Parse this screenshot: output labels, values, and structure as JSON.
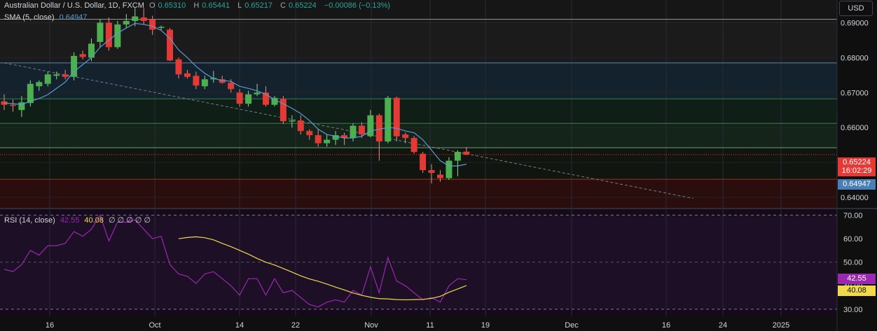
{
  "header": {
    "symbol": "Australian Dollar / U.S. Dollar, 1D, FXCM",
    "o_label": "O",
    "o": "0.65310",
    "h_label": "H",
    "h": "0.65441",
    "l_label": "L",
    "l": "0.65217",
    "c_label": "C",
    "c": "0.65224",
    "change": "−0.00086 (−0.13%)",
    "sma_label": "SMA (5, close)",
    "sma_value": "0.64947"
  },
  "currency_button": "USD",
  "price_tags": {
    "last": "0.65224",
    "countdown": "16:02:29",
    "sma": "0.64947"
  },
  "rsi_header": {
    "label": "RSI (14, close)",
    "rsi": "42.55",
    "ma": "40.08",
    "rest": "∅ ∅ ∅ ∅ ∅"
  },
  "rsi_tags": {
    "rsi": "42.55",
    "ma": "40.08"
  },
  "colors": {
    "up": "#4caf50",
    "down": "#e53935",
    "sma": "#5b9bd5",
    "rsi": "#9c27b0",
    "rsi_ma": "#f0d94a",
    "trend": "#787b86"
  },
  "chart_data": [
    {
      "type": "candlestick",
      "title": "Australian Dollar / U.S. Dollar, 1D, FXCM",
      "ylim": [
        0.637,
        0.6965
      ],
      "y_ticks": [
        "0.69000",
        "0.68000",
        "0.67000",
        "0.66000",
        "0.65000",
        "0.64000"
      ],
      "x_ticks": [
        "16",
        "Oct",
        "14",
        "22",
        "Nov",
        "11",
        "19",
        "Dec",
        "16",
        "24",
        "2025"
      ],
      "ohlc": [
        [
          0.6675,
          0.6695,
          0.665,
          0.6665
        ],
        [
          0.6665,
          0.668,
          0.6645,
          0.6662
        ],
        [
          0.665,
          0.669,
          0.663,
          0.6672
        ],
        [
          0.667,
          0.6735,
          0.666,
          0.6725
        ],
        [
          0.6718,
          0.6735,
          0.6705,
          0.673
        ],
        [
          0.6725,
          0.676,
          0.6718,
          0.6752
        ],
        [
          0.6748,
          0.676,
          0.6738,
          0.6752
        ],
        [
          0.6752,
          0.6765,
          0.6738,
          0.6745
        ],
        [
          0.6745,
          0.6815,
          0.6735,
          0.6805
        ],
        [
          0.681,
          0.682,
          0.6795,
          0.6802
        ],
        [
          0.68,
          0.6855,
          0.679,
          0.684
        ],
        [
          0.6845,
          0.691,
          0.683,
          0.69
        ],
        [
          0.69,
          0.6915,
          0.682,
          0.683
        ],
        [
          0.683,
          0.6905,
          0.6825,
          0.6895
        ],
        [
          0.6895,
          0.6925,
          0.6885,
          0.6905
        ],
        [
          0.6905,
          0.6942,
          0.689,
          0.6918
        ],
        [
          0.6915,
          0.6942,
          0.6895,
          0.6905
        ],
        [
          0.691,
          0.692,
          0.6865,
          0.688
        ],
        [
          0.6885,
          0.6892,
          0.6878,
          0.6888
        ],
        [
          0.688,
          0.6885,
          0.679,
          0.6792
        ],
        [
          0.6795,
          0.68,
          0.674,
          0.6752
        ],
        [
          0.6755,
          0.6765,
          0.674,
          0.6745
        ],
        [
          0.6748,
          0.676,
          0.671,
          0.672
        ],
        [
          0.6718,
          0.6748,
          0.671,
          0.6738
        ],
        [
          0.6738,
          0.6762,
          0.6728,
          0.6742
        ],
        [
          0.6738,
          0.6748,
          0.6725,
          0.6728
        ],
        [
          0.6728,
          0.6738,
          0.67,
          0.671
        ],
        [
          0.67,
          0.671,
          0.666,
          0.6668
        ],
        [
          0.6668,
          0.6705,
          0.666,
          0.6695
        ],
        [
          0.6695,
          0.6725,
          0.669,
          0.67
        ],
        [
          0.67,
          0.6718,
          0.666,
          0.6665
        ],
        [
          0.6665,
          0.669,
          0.666,
          0.6685
        ],
        [
          0.6682,
          0.669,
          0.661,
          0.6618
        ],
        [
          0.662,
          0.6635,
          0.66,
          0.662
        ],
        [
          0.662,
          0.6635,
          0.658,
          0.659
        ],
        [
          0.659,
          0.6595,
          0.6565,
          0.6578
        ],
        [
          0.6578,
          0.6595,
          0.6545,
          0.6555
        ],
        [
          0.6555,
          0.658,
          0.6545,
          0.6565
        ],
        [
          0.6565,
          0.659,
          0.655,
          0.6578
        ],
        [
          0.6578,
          0.6585,
          0.655,
          0.657
        ],
        [
          0.657,
          0.6612,
          0.656,
          0.6605
        ],
        [
          0.6605,
          0.6615,
          0.657,
          0.658
        ],
        [
          0.6575,
          0.665,
          0.6572,
          0.6635
        ],
        [
          0.6635,
          0.664,
          0.6505,
          0.656
        ],
        [
          0.656,
          0.669,
          0.6555,
          0.6685
        ],
        [
          0.6685,
          0.6688,
          0.656,
          0.6575
        ],
        [
          0.658,
          0.6585,
          0.6555,
          0.657
        ],
        [
          0.657,
          0.6575,
          0.6525,
          0.653
        ],
        [
          0.6525,
          0.653,
          0.647,
          0.6478
        ],
        [
          0.6478,
          0.6495,
          0.644,
          0.647
        ],
        [
          0.6465,
          0.6478,
          0.6445,
          0.6455
        ],
        [
          0.6455,
          0.6515,
          0.645,
          0.6505
        ],
        [
          0.6505,
          0.6535,
          0.646,
          0.653
        ],
        [
          0.6531,
          0.6544,
          0.6521,
          0.6522
        ]
      ],
      "sma": [
        0.667,
        0.6668,
        0.6666,
        0.6675,
        0.6683,
        0.6694,
        0.6712,
        0.673,
        0.676,
        0.678,
        0.68,
        0.683,
        0.685,
        0.687,
        0.6885,
        0.6898,
        0.6895,
        0.689,
        0.6878,
        0.6855,
        0.6822,
        0.68,
        0.6775,
        0.6755,
        0.674,
        0.6735,
        0.6732,
        0.6718,
        0.6712,
        0.6705,
        0.6695,
        0.668,
        0.6668,
        0.6655,
        0.664,
        0.662,
        0.6595,
        0.658,
        0.6575,
        0.657,
        0.657,
        0.6575,
        0.659,
        0.6595,
        0.66,
        0.6598,
        0.659,
        0.6585,
        0.6565,
        0.6535,
        0.6505,
        0.649,
        0.649,
        0.6495
      ],
      "levels": [
        0.691,
        0.6785,
        0.6682,
        0.6612,
        0.6542,
        0.6452
      ],
      "last_price": 0.65224,
      "trendline": {
        "from": [
          0,
          0.6785
        ],
        "to": [
          79,
          0.6397
        ]
      }
    },
    {
      "type": "line",
      "title": "RSI (14, close)",
      "ylim": [
        27,
        72.5
      ],
      "y_ticks": [
        "70.00",
        "60.00",
        "50.00",
        "40.00",
        "30.00"
      ],
      "bands": [
        70,
        50,
        30
      ],
      "series": [
        {
          "name": "RSI",
          "values": [
            47,
            46,
            49,
            55,
            53,
            57,
            57,
            58,
            63,
            61,
            64,
            70,
            59,
            67,
            67,
            68,
            64,
            60,
            61,
            49,
            45,
            44,
            41,
            45,
            46,
            43,
            40,
            36,
            43,
            43,
            36,
            43,
            37,
            38,
            35,
            32,
            31,
            33,
            34,
            33,
            38,
            36,
            48,
            37,
            52,
            42,
            40,
            37,
            34,
            35,
            33,
            40,
            43,
            42.55
          ]
        },
        {
          "name": "MA",
          "values": [
            null,
            null,
            null,
            null,
            null,
            null,
            null,
            null,
            null,
            null,
            null,
            null,
            null,
            null,
            null,
            null,
            null,
            null,
            null,
            null,
            60,
            60.5,
            60.8,
            60.4,
            59.5,
            58,
            56.6,
            55,
            53.4,
            51.6,
            50,
            48.8,
            47.3,
            45.8,
            44.2,
            42.9,
            41.9,
            40.7,
            39.4,
            38.2,
            36.9,
            35.9,
            35.1,
            34.5,
            34.4,
            34.1,
            34.0,
            34.1,
            34.2,
            34.6,
            35.5,
            37.2,
            38.6,
            40.08
          ]
        }
      ]
    }
  ]
}
